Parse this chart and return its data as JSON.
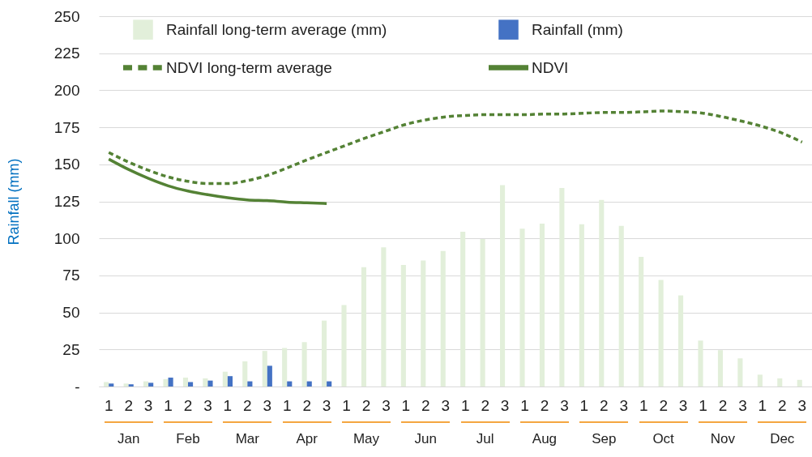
{
  "chart_data": {
    "type": "bar",
    "ylabel": "Rainfall (mm)",
    "categories": [
      "1",
      "2",
      "3",
      "1",
      "2",
      "3",
      "1",
      "2",
      "3",
      "1",
      "2",
      "3",
      "1",
      "2",
      "3",
      "1",
      "2",
      "3",
      "1",
      "2",
      "3",
      "1",
      "2",
      "3",
      "1",
      "2",
      "3",
      "1",
      "2",
      "3",
      "1",
      "2",
      "3",
      "1",
      "2",
      "3"
    ],
    "annotations": [
      "Jan",
      "Feb",
      "Mar",
      "Apr",
      "May",
      "Jun",
      "Jul",
      "Aug",
      "Sep",
      "Oct",
      "Nov",
      "Dec"
    ],
    "series": [
      {
        "name": "Rainfall long-term average (mm)",
        "color": "#e2efda",
        "values": [
          3,
          2,
          3.5,
          5,
          6,
          5.5,
          10,
          17,
          24,
          26,
          30,
          44.5,
          55,
          80.5,
          94,
          82,
          85,
          91.5,
          104.5,
          99.5,
          136,
          106.5,
          110,
          134,
          109.5,
          126,
          108.5,
          87.5,
          72,
          61.5,
          31,
          24.5,
          19,
          8,
          5.5,
          4.5
        ]
      },
      {
        "name": "Rainfall (mm)",
        "color": "#4472c4",
        "values": [
          2,
          1.5,
          2.5,
          6,
          3,
          4,
          7,
          3.5,
          14,
          3.5,
          3.5,
          3.5,
          null,
          null,
          null,
          null,
          null,
          null,
          null,
          null,
          null,
          null,
          null,
          null,
          null,
          null,
          null,
          null,
          null,
          null,
          null,
          null,
          null,
          null,
          null,
          null
        ]
      },
      {
        "name": "NDVI long-term average",
        "type": "line",
        "line_style": "dashed",
        "color": "#548235",
        "values": [
          158,
          151.5,
          146,
          141.5,
          138.5,
          137,
          137,
          139,
          142.5,
          147.5,
          153,
          158,
          163,
          168,
          172.5,
          177,
          180,
          182,
          183,
          183.5,
          183.5,
          183.5,
          184,
          184,
          184.5,
          185,
          185,
          185.5,
          186,
          185.5,
          184.5,
          182,
          179,
          175.5,
          171,
          165
        ]
      },
      {
        "name": "NDVI",
        "type": "line",
        "line_style": "solid",
        "color": "#548235",
        "values": [
          153.5,
          146.5,
          140.5,
          135.5,
          132,
          129.5,
          127.5,
          126,
          125.5,
          124.5,
          124,
          123.5,
          null,
          null,
          null,
          null,
          null,
          null,
          null,
          null,
          null,
          null,
          null,
          null,
          null,
          null,
          null,
          null,
          null,
          null,
          null,
          null,
          null,
          null,
          null,
          null
        ]
      }
    ],
    "ylim": [
      0,
      250
    ],
    "yticks": [
      {
        "value": 0,
        "label": "-"
      },
      25,
      50,
      75,
      100,
      125,
      150,
      175,
      200,
      225,
      250
    ],
    "grid": "y",
    "legend": "top",
    "marker": "none"
  }
}
